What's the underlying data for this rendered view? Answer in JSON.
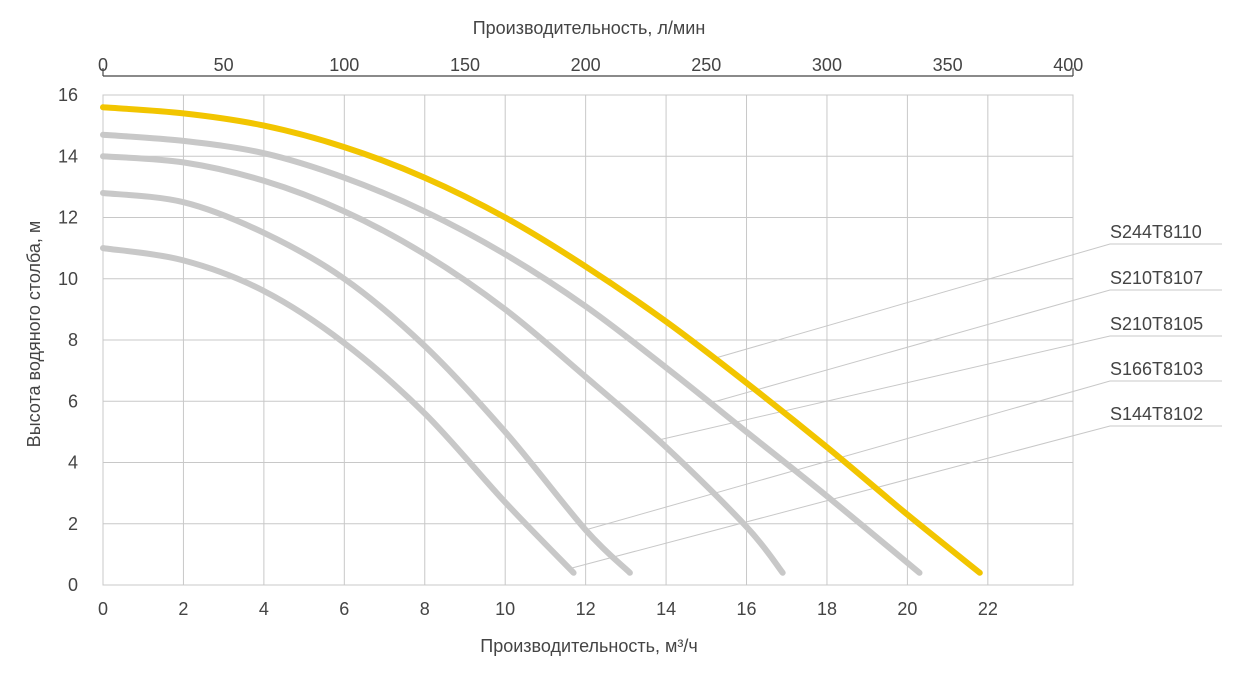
{
  "chart_data": {
    "type": "line",
    "top_axis": {
      "label": "Производительность, л/мин",
      "ticks": [
        0,
        50,
        100,
        150,
        200,
        250,
        300,
        350,
        400
      ]
    },
    "xlabel": "Производительность, м³/ч",
    "ylabel": "Высота водяного столба, м",
    "xlim": [
      0,
      24
    ],
    "ylim": [
      0,
      16
    ],
    "xticks": [
      0,
      2,
      4,
      6,
      8,
      10,
      12,
      14,
      16,
      18,
      20,
      22
    ],
    "yticks": [
      0,
      2,
      4,
      6,
      8,
      10,
      12,
      14,
      16
    ],
    "grid": true,
    "colors": {
      "highlight": "#F2C500",
      "other": "#C8C8C8",
      "grid": "#C8C8C8",
      "leader": "#C8C8C8"
    },
    "series": [
      {
        "name": "S244T8110",
        "highlight": true,
        "points": [
          [
            0,
            15.6
          ],
          [
            2,
            15.4
          ],
          [
            4,
            15.0
          ],
          [
            6,
            14.3
          ],
          [
            8,
            13.3
          ],
          [
            10,
            12.0
          ],
          [
            12,
            10.4
          ],
          [
            14,
            8.6
          ],
          [
            16,
            6.6
          ],
          [
            18,
            4.5
          ],
          [
            20,
            2.3
          ],
          [
            21.8,
            0.4
          ]
        ]
      },
      {
        "name": "S210T8107",
        "highlight": false,
        "points": [
          [
            0,
            14.7
          ],
          [
            2,
            14.5
          ],
          [
            4,
            14.1
          ],
          [
            6,
            13.3
          ],
          [
            8,
            12.2
          ],
          [
            10,
            10.8
          ],
          [
            12,
            9.1
          ],
          [
            14,
            7.1
          ],
          [
            16,
            5.0
          ],
          [
            18,
            2.9
          ],
          [
            20.3,
            0.4
          ]
        ]
      },
      {
        "name": "S210T8105",
        "highlight": false,
        "points": [
          [
            0,
            14.0
          ],
          [
            2,
            13.8
          ],
          [
            4,
            13.2
          ],
          [
            6,
            12.2
          ],
          [
            8,
            10.8
          ],
          [
            10,
            9.0
          ],
          [
            12,
            6.8
          ],
          [
            14,
            4.5
          ],
          [
            16,
            1.9
          ],
          [
            16.9,
            0.4
          ]
        ]
      },
      {
        "name": "S166T8103",
        "highlight": false,
        "points": [
          [
            0,
            12.8
          ],
          [
            2,
            12.5
          ],
          [
            4,
            11.5
          ],
          [
            6,
            10.0
          ],
          [
            8,
            7.8
          ],
          [
            10,
            5.0
          ],
          [
            12,
            1.8
          ],
          [
            13.1,
            0.4
          ]
        ]
      },
      {
        "name": "S144T8102",
        "highlight": false,
        "points": [
          [
            0,
            11.0
          ],
          [
            2,
            10.6
          ],
          [
            4,
            9.6
          ],
          [
            6,
            7.9
          ],
          [
            8,
            5.6
          ],
          [
            10,
            2.7
          ],
          [
            11.7,
            0.4
          ]
        ]
      }
    ]
  }
}
